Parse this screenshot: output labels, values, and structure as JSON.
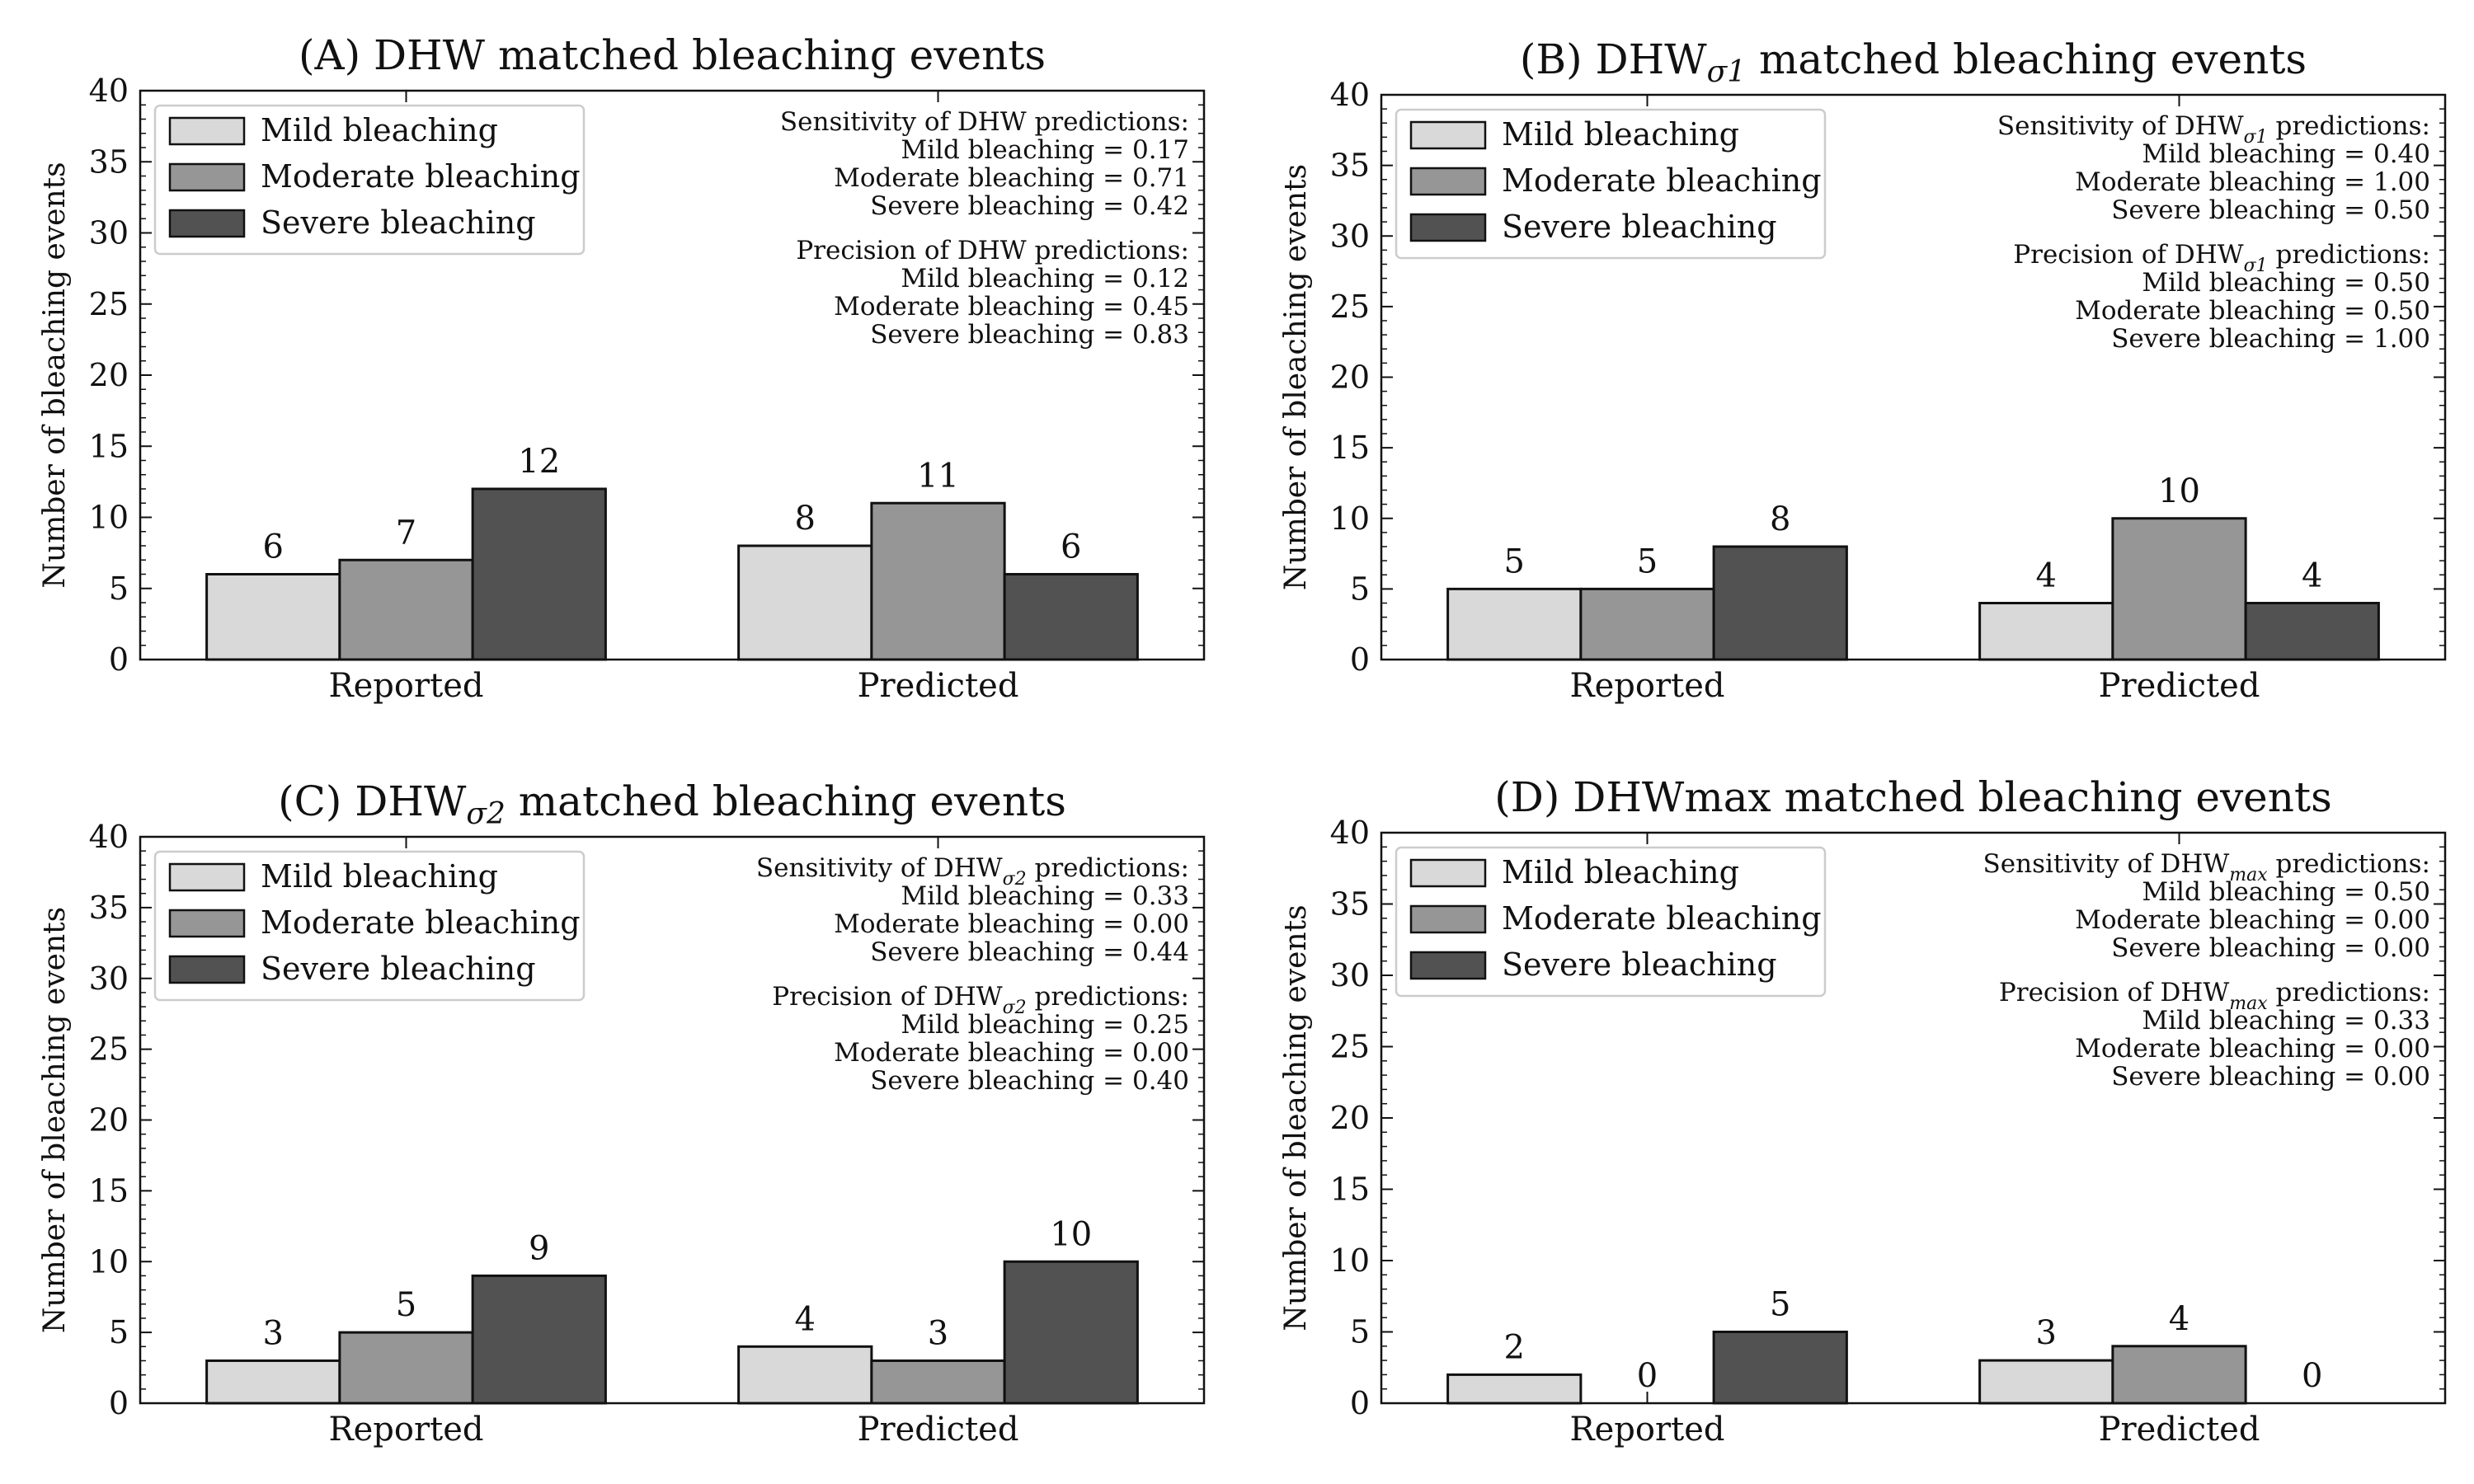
{
  "colors": {
    "mild": "#d9d9d9",
    "moderate": "#969696",
    "severe": "#525252",
    "edge": "#111111"
  },
  "chart_data": [
    {
      "type": "bar",
      "title": "(A) DHW matched bleaching events",
      "title_sub": "",
      "title_rest": "",
      "ylabel": "Number of bleaching events",
      "ylim": [
        0,
        40
      ],
      "yticks": [
        0,
        5,
        10,
        15,
        20,
        25,
        30,
        35,
        40
      ],
      "categories": [
        "Reported",
        "Predicted"
      ],
      "legend_position": "upper-left",
      "series": [
        {
          "name": "Mild bleaching",
          "values": [
            6,
            8
          ]
        },
        {
          "name": "Moderate bleaching",
          "values": [
            7,
            11
          ]
        },
        {
          "name": "Severe bleaching",
          "values": [
            12,
            6
          ]
        }
      ],
      "annotations": {
        "sensitivity_title": "Sensitivity of DHW predictions:",
        "sensitivity_lines": [
          "Mild bleaching = 0.17",
          "Moderate bleaching = 0.71",
          "Severe bleaching = 0.42"
        ],
        "precision_title": "Precision of DHW predictions:",
        "precision_lines": [
          "Mild bleaching = 0.12",
          "Moderate bleaching = 0.45",
          "Severe bleaching = 0.83"
        ]
      }
    },
    {
      "type": "bar",
      "title": "(B) DHW",
      "title_sub": "σ1",
      "title_rest": " matched bleaching events",
      "ylabel": "Number of bleaching events",
      "ylim": [
        0,
        40
      ],
      "yticks": [
        0,
        5,
        10,
        15,
        20,
        25,
        30,
        35,
        40
      ],
      "categories": [
        "Reported",
        "Predicted"
      ],
      "legend_position": "upper-left",
      "series": [
        {
          "name": "Mild bleaching",
          "values": [
            5,
            4
          ]
        },
        {
          "name": "Moderate bleaching",
          "values": [
            5,
            10
          ]
        },
        {
          "name": "Severe bleaching",
          "values": [
            8,
            4
          ]
        }
      ],
      "annotations": {
        "sensitivity_title": "Sensitivity of DHW",
        "sensitivity_sub": "σ1",
        "sensitivity_rest": " predictions:",
        "sensitivity_lines": [
          "Mild bleaching = 0.40",
          "Moderate bleaching = 1.00",
          "Severe bleaching = 0.50"
        ],
        "precision_title": "Precision of DHW",
        "precision_sub": "σ1",
        "precision_rest": " predictions:",
        "precision_lines": [
          "Mild bleaching = 0.50",
          "Moderate bleaching = 0.50",
          "Severe bleaching = 1.00"
        ]
      }
    },
    {
      "type": "bar",
      "title": "(C) DHW",
      "title_sub": "σ2",
      "title_rest": " matched bleaching events",
      "ylabel": "Number of bleaching events",
      "ylim": [
        0,
        40
      ],
      "yticks": [
        0,
        5,
        10,
        15,
        20,
        25,
        30,
        35,
        40
      ],
      "categories": [
        "Reported",
        "Predicted"
      ],
      "legend_position": "upper-left",
      "series": [
        {
          "name": "Mild bleaching",
          "values": [
            3,
            4
          ]
        },
        {
          "name": "Moderate bleaching",
          "values": [
            5,
            3
          ]
        },
        {
          "name": "Severe bleaching",
          "values": [
            9,
            10
          ]
        }
      ],
      "annotations": {
        "sensitivity_title": "Sensitivity of DHW",
        "sensitivity_sub": "σ2",
        "sensitivity_rest": " predictions:",
        "sensitivity_lines": [
          "Mild bleaching = 0.33",
          "Moderate bleaching = 0.00",
          "Severe bleaching = 0.44"
        ],
        "precision_title": "Precision of DHW",
        "precision_sub": "σ2",
        "precision_rest": " predictions:",
        "precision_lines": [
          "Mild bleaching = 0.25",
          "Moderate bleaching = 0.00",
          "Severe bleaching = 0.40"
        ]
      }
    },
    {
      "type": "bar",
      "title": "(D) DHWmax matched bleaching events",
      "title_sub": "",
      "title_rest": "",
      "ylabel": "Number of bleaching events",
      "ylim": [
        0,
        40
      ],
      "yticks": [
        0,
        5,
        10,
        15,
        20,
        25,
        30,
        35,
        40
      ],
      "categories": [
        "Reported",
        "Predicted"
      ],
      "legend_position": "upper-left",
      "series": [
        {
          "name": "Mild bleaching",
          "values": [
            2,
            3
          ]
        },
        {
          "name": "Moderate bleaching",
          "values": [
            0,
            4
          ]
        },
        {
          "name": "Severe bleaching",
          "values": [
            5,
            0
          ]
        }
      ],
      "annotations": {
        "sensitivity_title": "Sensitivity of DHW",
        "sensitivity_sub": "max",
        "sensitivity_rest": " predictions:",
        "sensitivity_lines": [
          "Mild bleaching = 0.50",
          "Moderate bleaching = 0.00",
          "Severe bleaching = 0.00"
        ],
        "precision_title": "Precision of DHW",
        "precision_sub": "max",
        "precision_rest": " predictions:",
        "precision_lines": [
          "Mild bleaching = 0.33",
          "Moderate bleaching = 0.00",
          "Severe bleaching = 0.00"
        ]
      }
    }
  ]
}
